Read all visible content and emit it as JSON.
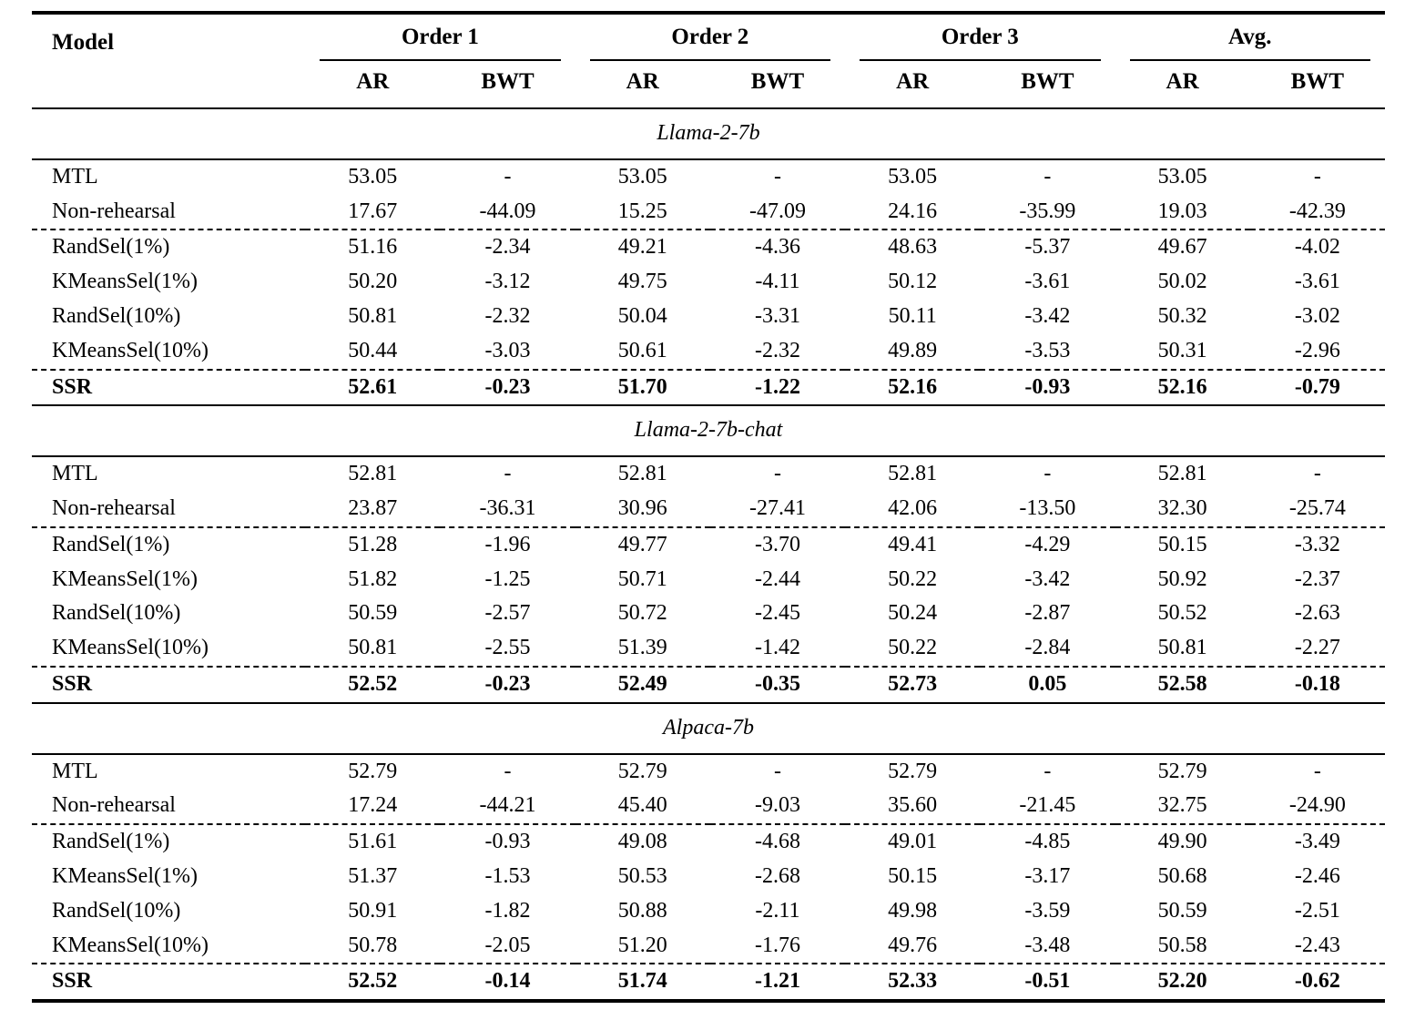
{
  "colors": {
    "ink": "#000000",
    "background": "#ffffff"
  },
  "table": {
    "header": {
      "model_label": "Model",
      "groups": [
        {
          "label": "Order 1"
        },
        {
          "label": "Order 2"
        },
        {
          "label": "Order 3"
        },
        {
          "label": "Avg."
        }
      ],
      "subcols": [
        "AR",
        "BWT"
      ]
    },
    "sections": [
      {
        "title": "Llama-2-7b",
        "rows": [
          {
            "model": "MTL",
            "bold": false,
            "dashed_top": false,
            "values": [
              "53.05",
              "-",
              "53.05",
              "-",
              "53.05",
              "-",
              "53.05",
              "-"
            ]
          },
          {
            "model": "Non-rehearsal",
            "bold": false,
            "dashed_top": false,
            "values": [
              "17.67",
              "-44.09",
              "15.25",
              "-47.09",
              "24.16",
              "-35.99",
              "19.03",
              "-42.39"
            ]
          },
          {
            "model": "RandSel(1%)",
            "bold": false,
            "dashed_top": true,
            "values": [
              "51.16",
              "-2.34",
              "49.21",
              "-4.36",
              "48.63",
              "-5.37",
              "49.67",
              "-4.02"
            ]
          },
          {
            "model": "KMeansSel(1%)",
            "bold": false,
            "dashed_top": false,
            "values": [
              "50.20",
              "-3.12",
              "49.75",
              "-4.11",
              "50.12",
              "-3.61",
              "50.02",
              "-3.61"
            ]
          },
          {
            "model": "RandSel(10%)",
            "bold": false,
            "dashed_top": false,
            "values": [
              "50.81",
              "-2.32",
              "50.04",
              "-3.31",
              "50.11",
              "-3.42",
              "50.32",
              "-3.02"
            ]
          },
          {
            "model": "KMeansSel(10%)",
            "bold": false,
            "dashed_top": false,
            "values": [
              "50.44",
              "-3.03",
              "50.61",
              "-2.32",
              "49.89",
              "-3.53",
              "50.31",
              "-2.96"
            ]
          },
          {
            "model": "SSR",
            "bold": true,
            "dashed_top": true,
            "values": [
              "52.61",
              "-0.23",
              "51.70",
              "-1.22",
              "52.16",
              "-0.93",
              "52.16",
              "-0.79"
            ]
          }
        ]
      },
      {
        "title": "Llama-2-7b-chat",
        "rows": [
          {
            "model": "MTL",
            "bold": false,
            "dashed_top": false,
            "values": [
              "52.81",
              "-",
              "52.81",
              "-",
              "52.81",
              "-",
              "52.81",
              "-"
            ]
          },
          {
            "model": "Non-rehearsal",
            "bold": false,
            "dashed_top": false,
            "values": [
              "23.87",
              "-36.31",
              "30.96",
              "-27.41",
              "42.06",
              "-13.50",
              "32.30",
              "-25.74"
            ]
          },
          {
            "model": "RandSel(1%)",
            "bold": false,
            "dashed_top": true,
            "values": [
              "51.28",
              "-1.96",
              "49.77",
              "-3.70",
              "49.41",
              "-4.29",
              "50.15",
              "-3.32"
            ]
          },
          {
            "model": "KMeansSel(1%)",
            "bold": false,
            "dashed_top": false,
            "values": [
              "51.82",
              "-1.25",
              "50.71",
              "-2.44",
              "50.22",
              "-3.42",
              "50.92",
              "-2.37"
            ]
          },
          {
            "model": "RandSel(10%)",
            "bold": false,
            "dashed_top": false,
            "values": [
              "50.59",
              "-2.57",
              "50.72",
              "-2.45",
              "50.24",
              "-2.87",
              "50.52",
              "-2.63"
            ]
          },
          {
            "model": "KMeansSel(10%)",
            "bold": false,
            "dashed_top": false,
            "values": [
              "50.81",
              "-2.55",
              "51.39",
              "-1.42",
              "50.22",
              "-2.84",
              "50.81",
              "-2.27"
            ]
          },
          {
            "model": "SSR",
            "bold": true,
            "dashed_top": true,
            "values": [
              "52.52",
              "-0.23",
              "52.49",
              "-0.35",
              "52.73",
              "0.05",
              "52.58",
              "-0.18"
            ]
          }
        ]
      },
      {
        "title": "Alpaca-7b",
        "rows": [
          {
            "model": "MTL",
            "bold": false,
            "dashed_top": false,
            "values": [
              "52.79",
              "-",
              "52.79",
              "-",
              "52.79",
              "-",
              "52.79",
              "-"
            ]
          },
          {
            "model": "Non-rehearsal",
            "bold": false,
            "dashed_top": false,
            "values": [
              "17.24",
              "-44.21",
              "45.40",
              "-9.03",
              "35.60",
              "-21.45",
              "32.75",
              "-24.90"
            ]
          },
          {
            "model": "RandSel(1%)",
            "bold": false,
            "dashed_top": true,
            "values": [
              "51.61",
              "-0.93",
              "49.08",
              "-4.68",
              "49.01",
              "-4.85",
              "49.90",
              "-3.49"
            ]
          },
          {
            "model": "KMeansSel(1%)",
            "bold": false,
            "dashed_top": false,
            "values": [
              "51.37",
              "-1.53",
              "50.53",
              "-2.68",
              "50.15",
              "-3.17",
              "50.68",
              "-2.46"
            ]
          },
          {
            "model": "RandSel(10%)",
            "bold": false,
            "dashed_top": false,
            "values": [
              "50.91",
              "-1.82",
              "50.88",
              "-2.11",
              "49.98",
              "-3.59",
              "50.59",
              "-2.51"
            ]
          },
          {
            "model": "KMeansSel(10%)",
            "bold": false,
            "dashed_top": false,
            "values": [
              "50.78",
              "-2.05",
              "51.20",
              "-1.76",
              "49.76",
              "-3.48",
              "50.58",
              "-2.43"
            ]
          },
          {
            "model": "SSR",
            "bold": true,
            "dashed_top": true,
            "values": [
              "52.52",
              "-0.14",
              "51.74",
              "-1.21",
              "52.33",
              "-0.51",
              "52.20",
              "-0.62"
            ]
          }
        ]
      }
    ]
  }
}
